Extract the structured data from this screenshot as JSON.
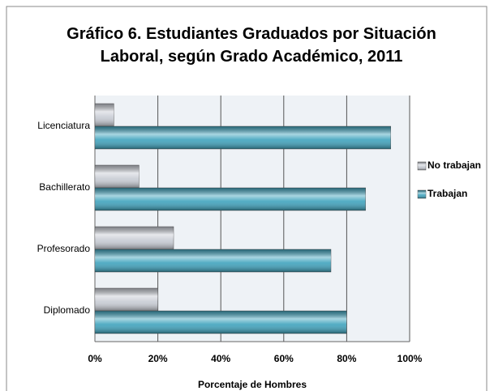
{
  "chart_data": {
    "type": "hbar",
    "title": "Gráfico 6. Estudiantes Graduados por Situación Laboral, según Grado Académico, 2011",
    "x_label": "Porcentaje de Hombres",
    "categories": [
      "Licenciatura",
      "Bachillerato",
      "Profesorado",
      "Diplomado"
    ],
    "series": [
      {
        "name": "No trabajan",
        "color": "#c8ccd4",
        "values": [
          6,
          14,
          25,
          20
        ]
      },
      {
        "name": "Trabajan",
        "color": "#3fa3bd",
        "values": [
          94,
          86,
          75,
          80
        ]
      }
    ],
    "xlim": [
      0,
      100
    ],
    "xticks": [
      {
        "value": 0,
        "label": "0%"
      },
      {
        "value": 20,
        "label": "20%"
      },
      {
        "value": 40,
        "label": "40%"
      },
      {
        "value": 60,
        "label": "60%"
      },
      {
        "value": 80,
        "label": "80%"
      },
      {
        "value": 100,
        "label": "100%"
      }
    ],
    "grid": true,
    "legend": "right"
  }
}
